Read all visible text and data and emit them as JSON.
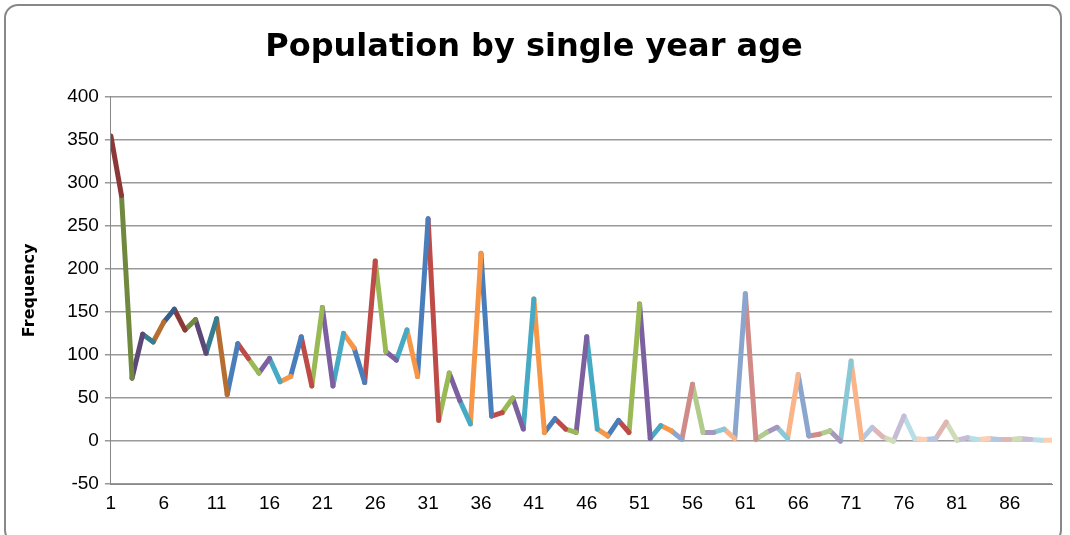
{
  "chart_data": {
    "type": "line",
    "title": "Population by single year age",
    "ylabel": "Frequency",
    "xlim": [
      1,
      90
    ],
    "xticks": [
      1,
      6,
      11,
      16,
      21,
      26,
      31,
      36,
      41,
      46,
      51,
      56,
      61,
      66,
      71,
      76,
      81,
      86
    ],
    "ylim": [
      -50,
      400
    ],
    "yticks": [
      -50,
      0,
      50,
      100,
      150,
      200,
      250,
      300,
      350,
      400
    ],
    "grid": "y",
    "legend": false,
    "marker": "none",
    "line_style": "solid",
    "series": [
      {
        "color": "#8c3836",
        "x": [
          1,
          2
        ],
        "values": [
          354,
          285
        ]
      },
      {
        "color": "#71893f",
        "x": [
          2,
          3
        ],
        "values": [
          285,
          73
        ]
      },
      {
        "color": "#5c4776",
        "x": [
          3,
          4
        ],
        "values": [
          73,
          124
        ]
      },
      {
        "color": "#357d91",
        "x": [
          4,
          5
        ],
        "values": [
          124,
          115
        ]
      },
      {
        "color": "#b66d31",
        "x": [
          5,
          6
        ],
        "values": [
          115,
          138
        ]
      },
      {
        "color": "#385d8a",
        "x": [
          6,
          7
        ],
        "values": [
          138,
          153
        ]
      },
      {
        "color": "#8c3836",
        "x": [
          7,
          8
        ],
        "values": [
          153,
          129
        ]
      },
      {
        "color": "#71893f",
        "x": [
          8,
          9
        ],
        "values": [
          129,
          141
        ]
      },
      {
        "color": "#5c4776",
        "x": [
          9,
          10
        ],
        "values": [
          141,
          102
        ]
      },
      {
        "color": "#357d91",
        "x": [
          10,
          11
        ],
        "values": [
          102,
          142
        ]
      },
      {
        "color": "#b66d31",
        "x": [
          11,
          12
        ],
        "values": [
          142,
          54
        ]
      },
      {
        "color": "#4a7ebb",
        "x": [
          12,
          13
        ],
        "values": [
          54,
          113
        ]
      },
      {
        "color": "#be4b48",
        "x": [
          13,
          14
        ],
        "values": [
          113,
          96
        ]
      },
      {
        "color": "#98b954",
        "x": [
          14,
          15
        ],
        "values": [
          96,
          79
        ]
      },
      {
        "color": "#7d60a0",
        "x": [
          15,
          16
        ],
        "values": [
          79,
          96
        ]
      },
      {
        "color": "#46aac5",
        "x": [
          16,
          17
        ],
        "values": [
          96,
          69
        ]
      },
      {
        "color": "#f79646",
        "x": [
          17,
          18
        ],
        "values": [
          69,
          75
        ]
      },
      {
        "color": "#4a7ebb",
        "x": [
          18,
          19
        ],
        "values": [
          75,
          121
        ]
      },
      {
        "color": "#be4b48",
        "x": [
          19,
          20
        ],
        "values": [
          121,
          64
        ]
      },
      {
        "color": "#98b954",
        "x": [
          20,
          21
        ],
        "values": [
          64,
          155
        ]
      },
      {
        "color": "#7d60a0",
        "x": [
          21,
          22
        ],
        "values": [
          155,
          64
        ]
      },
      {
        "color": "#46aac5",
        "x": [
          22,
          23
        ],
        "values": [
          64,
          125
        ]
      },
      {
        "color": "#f79646",
        "x": [
          23,
          24
        ],
        "values": [
          125,
          108
        ]
      },
      {
        "color": "#4a7ebb",
        "x": [
          24,
          25
        ],
        "values": [
          108,
          68
        ]
      },
      {
        "color": "#be4b48",
        "x": [
          25,
          26
        ],
        "values": [
          68,
          209
        ]
      },
      {
        "color": "#98b954",
        "x": [
          26,
          27
        ],
        "values": [
          209,
          104
        ]
      },
      {
        "color": "#7d60a0",
        "x": [
          27,
          28
        ],
        "values": [
          104,
          94
        ]
      },
      {
        "color": "#46aac5",
        "x": [
          28,
          29
        ],
        "values": [
          94,
          129
        ]
      },
      {
        "color": "#f79646",
        "x": [
          29,
          30
        ],
        "values": [
          129,
          75
        ]
      },
      {
        "color": "#4a7ebb",
        "x": [
          30,
          31
        ],
        "values": [
          75,
          258
        ]
      },
      {
        "color": "#be4b48",
        "x": [
          31,
          32
        ],
        "values": [
          258,
          24
        ]
      },
      {
        "color": "#98b954",
        "x": [
          32,
          33
        ],
        "values": [
          24,
          79
        ]
      },
      {
        "color": "#7d60a0",
        "x": [
          33,
          34
        ],
        "values": [
          79,
          47
        ]
      },
      {
        "color": "#46aac5",
        "x": [
          34,
          35
        ],
        "values": [
          47,
          20
        ]
      },
      {
        "color": "#f79646",
        "x": [
          35,
          36
        ],
        "values": [
          20,
          218
        ]
      },
      {
        "color": "#4a7ebb",
        "x": [
          36,
          37
        ],
        "values": [
          218,
          29
        ]
      },
      {
        "color": "#be4b48",
        "x": [
          37,
          38
        ],
        "values": [
          29,
          33
        ]
      },
      {
        "color": "#98b954",
        "x": [
          38,
          39
        ],
        "values": [
          33,
          50
        ]
      },
      {
        "color": "#7d60a0",
        "x": [
          39,
          40
        ],
        "values": [
          50,
          14
        ]
      },
      {
        "color": "#46aac5",
        "x": [
          40,
          41
        ],
        "values": [
          14,
          165
        ]
      },
      {
        "color": "#f79646",
        "x": [
          41,
          42
        ],
        "values": [
          165,
          10
        ]
      },
      {
        "color": "#4a7ebb",
        "x": [
          42,
          43
        ],
        "values": [
          10,
          26
        ]
      },
      {
        "color": "#be4b48",
        "x": [
          43,
          44
        ],
        "values": [
          26,
          14
        ]
      },
      {
        "color": "#98b954",
        "x": [
          44,
          45
        ],
        "values": [
          14,
          10
        ]
      },
      {
        "color": "#7d60a0",
        "x": [
          45,
          46
        ],
        "values": [
          10,
          121
        ]
      },
      {
        "color": "#46aac5",
        "x": [
          46,
          47
        ],
        "values": [
          121,
          14
        ]
      },
      {
        "color": "#f79646",
        "x": [
          47,
          48
        ],
        "values": [
          14,
          6
        ]
      },
      {
        "color": "#4a7ebb",
        "x": [
          48,
          49
        ],
        "values": [
          6,
          24
        ]
      },
      {
        "color": "#be4b48",
        "x": [
          49,
          50
        ],
        "values": [
          24,
          10
        ]
      },
      {
        "color": "#98b954",
        "x": [
          50,
          51
        ],
        "values": [
          10,
          159
        ]
      },
      {
        "color": "#7d60a0",
        "x": [
          51,
          52
        ],
        "values": [
          159,
          3
        ]
      },
      {
        "color": "#46aac5",
        "x": [
          52,
          53
        ],
        "values": [
          3,
          18
        ]
      },
      {
        "color": "#f79646",
        "x": [
          53,
          54
        ],
        "values": [
          18,
          12
        ]
      },
      {
        "color": "#8aa6cf",
        "x": [
          54,
          55
        ],
        "values": [
          12,
          2
        ]
      },
      {
        "color": "#d08a88",
        "x": [
          55,
          56
        ],
        "values": [
          2,
          66
        ]
      },
      {
        "color": "#b0cb8c",
        "x": [
          56,
          57
        ],
        "values": [
          66,
          10
        ]
      },
      {
        "color": "#a597bd",
        "x": [
          57,
          58
        ],
        "values": [
          10,
          10
        ]
      },
      {
        "color": "#8ac8d8",
        "x": [
          58,
          59
        ],
        "values": [
          10,
          14
        ]
      },
      {
        "color": "#f9b48a",
        "x": [
          59,
          60
        ],
        "values": [
          14,
          3
        ]
      },
      {
        "color": "#8aa6cf",
        "x": [
          60,
          61
        ],
        "values": [
          3,
          171
        ]
      },
      {
        "color": "#d08a88",
        "x": [
          61,
          62
        ],
        "values": [
          171,
          2
        ]
      },
      {
        "color": "#b0cb8c",
        "x": [
          62,
          63
        ],
        "values": [
          2,
          10
        ]
      },
      {
        "color": "#a597bd",
        "x": [
          63,
          64
        ],
        "values": [
          10,
          16
        ]
      },
      {
        "color": "#8ac8d8",
        "x": [
          64,
          65
        ],
        "values": [
          16,
          3
        ]
      },
      {
        "color": "#f9b48a",
        "x": [
          65,
          66
        ],
        "values": [
          3,
          77
        ]
      },
      {
        "color": "#8aa6cf",
        "x": [
          66,
          67
        ],
        "values": [
          77,
          6
        ]
      },
      {
        "color": "#d08a88",
        "x": [
          67,
          68
        ],
        "values": [
          6,
          8
        ]
      },
      {
        "color": "#b0cb8c",
        "x": [
          68,
          69
        ],
        "values": [
          8,
          12
        ]
      },
      {
        "color": "#a597bd",
        "x": [
          69,
          70
        ],
        "values": [
          12,
          0
        ]
      },
      {
        "color": "#8ac8d8",
        "x": [
          70,
          71
        ],
        "values": [
          0,
          93
        ]
      },
      {
        "color": "#f9b48a",
        "x": [
          71,
          72
        ],
        "values": [
          93,
          2
        ]
      },
      {
        "color": "#b5c6e0",
        "x": [
          72,
          73
        ],
        "values": [
          2,
          16
        ]
      },
      {
        "color": "#e0b6b5",
        "x": [
          73,
          74
        ],
        "values": [
          16,
          5
        ]
      },
      {
        "color": "#cfdcb8",
        "x": [
          74,
          75
        ],
        "values": [
          5,
          0
        ]
      },
      {
        "color": "#c6bcd6",
        "x": [
          75,
          76
        ],
        "values": [
          0,
          29
        ]
      },
      {
        "color": "#b8dfe8",
        "x": [
          76,
          77
        ],
        "values": [
          29,
          3
        ]
      },
      {
        "color": "#fcd0b5",
        "x": [
          77,
          78
        ],
        "values": [
          3,
          2
        ]
      },
      {
        "color": "#b5c6e0",
        "x": [
          78,
          79
        ],
        "values": [
          2,
          3
        ]
      },
      {
        "color": "#e0b6b5",
        "x": [
          79,
          80
        ],
        "values": [
          3,
          22
        ]
      },
      {
        "color": "#cfdcb8",
        "x": [
          80,
          81
        ],
        "values": [
          22,
          1
        ]
      },
      {
        "color": "#c6bcd6",
        "x": [
          81,
          82
        ],
        "values": [
          1,
          4
        ]
      },
      {
        "color": "#b8dfe8",
        "x": [
          82,
          83
        ],
        "values": [
          4,
          2
        ]
      },
      {
        "color": "#fcd0b5",
        "x": [
          83,
          84
        ],
        "values": [
          2,
          3
        ]
      },
      {
        "color": "#b5c6e0",
        "x": [
          84,
          85
        ],
        "values": [
          3,
          2
        ]
      },
      {
        "color": "#e0b6b5",
        "x": [
          85,
          86
        ],
        "values": [
          2,
          2
        ]
      },
      {
        "color": "#cfdcb8",
        "x": [
          86,
          87
        ],
        "values": [
          2,
          3
        ]
      },
      {
        "color": "#c6bcd6",
        "x": [
          87,
          88
        ],
        "values": [
          3,
          2
        ]
      },
      {
        "color": "#b8dfe8",
        "x": [
          88,
          89
        ],
        "values": [
          2,
          1
        ]
      },
      {
        "color": "#fcd0b5",
        "x": [
          89,
          90
        ],
        "values": [
          1,
          1
        ]
      }
    ]
  }
}
